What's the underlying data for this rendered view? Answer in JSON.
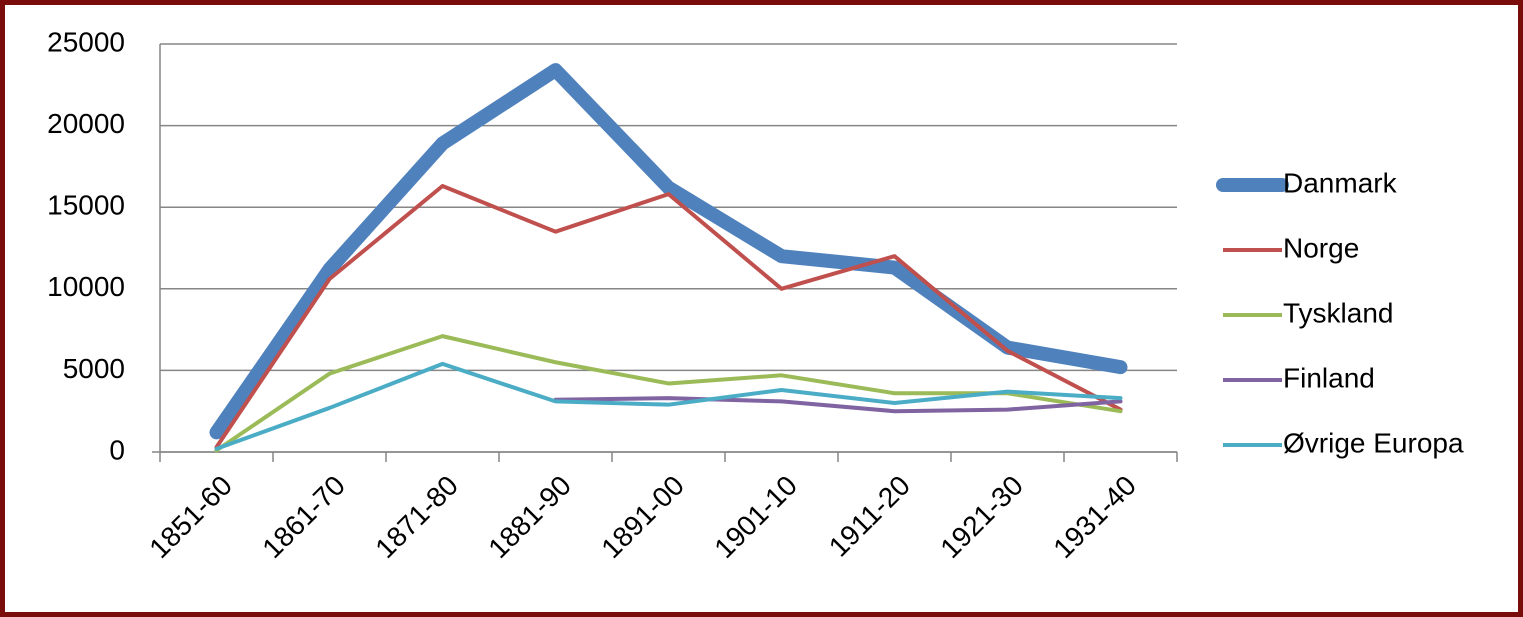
{
  "chart_data": {
    "type": "line",
    "categories": [
      "1851-60",
      "1861-70",
      "1871-80",
      "1881-90",
      "1891-00",
      "1901-10",
      "1911-20",
      "1921-30",
      "1931-40"
    ],
    "series": [
      {
        "name": "Danmark",
        "color": "#4f81bd",
        "values": [
          1200,
          11200,
          18900,
          23400,
          16200,
          12000,
          11300,
          6400,
          5200
        ]
      },
      {
        "name": "Norge",
        "color": "#c0504d",
        "values": [
          300,
          10600,
          16300,
          13500,
          15800,
          10000,
          12000,
          6200,
          2600
        ]
      },
      {
        "name": "Tyskland",
        "color": "#9bbb59",
        "values": [
          100,
          4800,
          7100,
          5500,
          4200,
          4700,
          3600,
          3600,
          2500
        ]
      },
      {
        "name": "Finland",
        "color": "#8064a2",
        "values": [
          null,
          null,
          null,
          3200,
          3300,
          3100,
          2500,
          2600,
          3100
        ]
      },
      {
        "name": "Øvrige Europa",
        "color": "#4bacc6",
        "values": [
          200,
          2700,
          5400,
          3100,
          2900,
          3800,
          3000,
          3700,
          3300
        ]
      }
    ],
    "ylim": [
      0,
      25000
    ],
    "yticks": [
      0,
      5000,
      10000,
      15000,
      20000,
      25000
    ],
    "grid": true,
    "legend": "right"
  }
}
